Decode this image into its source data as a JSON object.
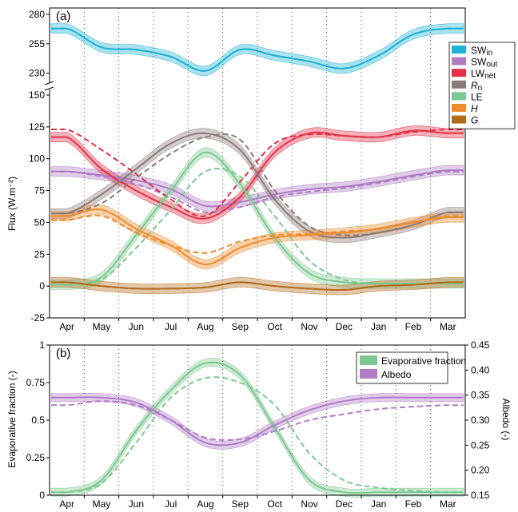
{
  "chart_data": [
    {
      "panel": "(a)",
      "type": "line",
      "ylabel": "Flux (W.m⁻²)",
      "x": [
        "Apr",
        "May",
        "Jun",
        "Jul",
        "Aug",
        "Sep",
        "Oct",
        "Nov",
        "Dec",
        "Jan",
        "Feb",
        "Mar"
      ],
      "upper_axis": {
        "ylim": [
          225,
          280
        ],
        "yticks": [
          280,
          255,
          230
        ],
        "tick_labels": [
          "280",
          "255",
          "230"
        ]
      },
      "lower_axis": {
        "ylim": [
          -25,
          150
        ],
        "yticks": [
          150,
          125,
          100,
          75,
          50,
          25,
          0,
          -25
        ],
        "tick_labels": [
          "150",
          "125",
          "100",
          "75",
          "50",
          "25",
          "0",
          "-25"
        ]
      },
      "grid": "vertical dotted lines at month boundaries",
      "legend_position": "right",
      "series": [
        {
          "name": "SW",
          "sub": "in",
          "italic": false,
          "color": "#1fb3d6",
          "axis": "upper",
          "values": [
            268,
            252,
            250,
            244,
            232,
            250,
            245,
            240,
            234,
            245,
            263,
            268
          ],
          "dashed_values": [
            268,
            252,
            250,
            244,
            232,
            250,
            245,
            240,
            234,
            245,
            263,
            268
          ]
        },
        {
          "name": "SW",
          "sub": "out",
          "italic": false,
          "color": "#b07cc6",
          "axis": "lower",
          "values": [
            90,
            87,
            83,
            76,
            63,
            66,
            72,
            76,
            78,
            82,
            87,
            91
          ],
          "dashed_values": [
            90,
            86,
            80,
            70,
            58,
            62,
            70,
            74,
            77,
            81,
            86,
            90
          ]
        },
        {
          "name": "LW",
          "sub": "net",
          "italic": false,
          "color": "#e52f47",
          "axis": "lower",
          "values": [
            117,
            92,
            75,
            62,
            53,
            70,
            105,
            120,
            118,
            117,
            122,
            120
          ],
          "dashed_values": [
            123,
            107,
            88,
            68,
            55,
            82,
            112,
            119,
            118,
            117,
            121,
            123
          ]
        },
        {
          "name": "R",
          "sub": "n",
          "italic": true,
          "color": "#8b7b7a",
          "axis": "lower",
          "values": [
            57,
            72,
            92,
            112,
            120,
            107,
            68,
            43,
            38,
            42,
            48,
            58
          ],
          "dashed_values": [
            57,
            65,
            85,
            104,
            117,
            115,
            75,
            47,
            40,
            42,
            48,
            58
          ]
        },
        {
          "name": "LE",
          "sub": "",
          "italic": false,
          "color": "#7cc890",
          "axis": "lower",
          "values": [
            1,
            7,
            40,
            75,
            105,
            80,
            38,
            10,
            3,
            2,
            2,
            2
          ],
          "dashed_values": [
            1,
            5,
            30,
            60,
            90,
            86,
            55,
            20,
            5,
            2,
            2,
            2
          ]
        },
        {
          "name": "H",
          "sub": "",
          "italic": true,
          "color": "#f08a2a",
          "axis": "lower",
          "values": [
            55,
            60,
            45,
            32,
            17,
            30,
            38,
            40,
            42,
            45,
            50,
            54
          ],
          "dashed_values": [
            52,
            55,
            42,
            32,
            26,
            35,
            40,
            41,
            43,
            45,
            50,
            55
          ]
        },
        {
          "name": "G",
          "sub": "",
          "italic": true,
          "color": "#b36c1c",
          "axis": "lower",
          "values": [
            3,
            0,
            -2,
            -2,
            -1,
            3,
            0,
            -2,
            -3,
            0,
            1,
            3
          ],
          "dashed_values": [
            3,
            0,
            -2,
            -2,
            -1,
            3,
            0,
            -2,
            -3,
            0,
            1,
            3
          ]
        }
      ]
    },
    {
      "panel": "(b)",
      "type": "line",
      "ylabel": "Evaporative fraction (-)",
      "ylabel_right": "Albedo (-)",
      "x": [
        "Apr",
        "May",
        "Jun",
        "Jul",
        "Aug",
        "Sep",
        "Oct",
        "Nov",
        "Dec",
        "Jan",
        "Feb",
        "Mar"
      ],
      "ylim": [
        0,
        1
      ],
      "yticks": [
        0,
        0.25,
        0.5,
        0.75,
        1
      ],
      "tick_labels": [
        "0",
        "0.25",
        "0.5",
        "0.75",
        "1"
      ],
      "ylim_right": [
        0.15,
        0.45
      ],
      "yticks_right": [
        0.15,
        0.2,
        0.25,
        0.3,
        0.35,
        0.4,
        0.45
      ],
      "tick_labels_right": [
        "0.15",
        "0.20",
        "0.25",
        "0.30",
        "0.35",
        "0.40",
        "0.45"
      ],
      "grid": "vertical dotted lines at month boundaries",
      "legend_position": "top-right",
      "series": [
        {
          "name": "Evaporative fraction",
          "color": "#7cc890",
          "axis": "left",
          "values": [
            0.02,
            0.1,
            0.43,
            0.7,
            0.88,
            0.8,
            0.45,
            0.1,
            0.02,
            0.02,
            0.02,
            0.02
          ],
          "dashed_values": [
            0.02,
            0.08,
            0.35,
            0.65,
            0.78,
            0.75,
            0.6,
            0.28,
            0.1,
            0.05,
            0.03,
            0.02
          ]
        },
        {
          "name": "Albedo",
          "color": "#b07cc6",
          "axis": "right",
          "values": [
            0.345,
            0.345,
            0.335,
            0.3,
            0.255,
            0.255,
            0.29,
            0.32,
            0.338,
            0.345,
            0.345,
            0.345
          ],
          "dashed_values": [
            0.33,
            0.338,
            0.33,
            0.3,
            0.265,
            0.262,
            0.278,
            0.3,
            0.312,
            0.322,
            0.327,
            0.33
          ]
        }
      ]
    }
  ]
}
